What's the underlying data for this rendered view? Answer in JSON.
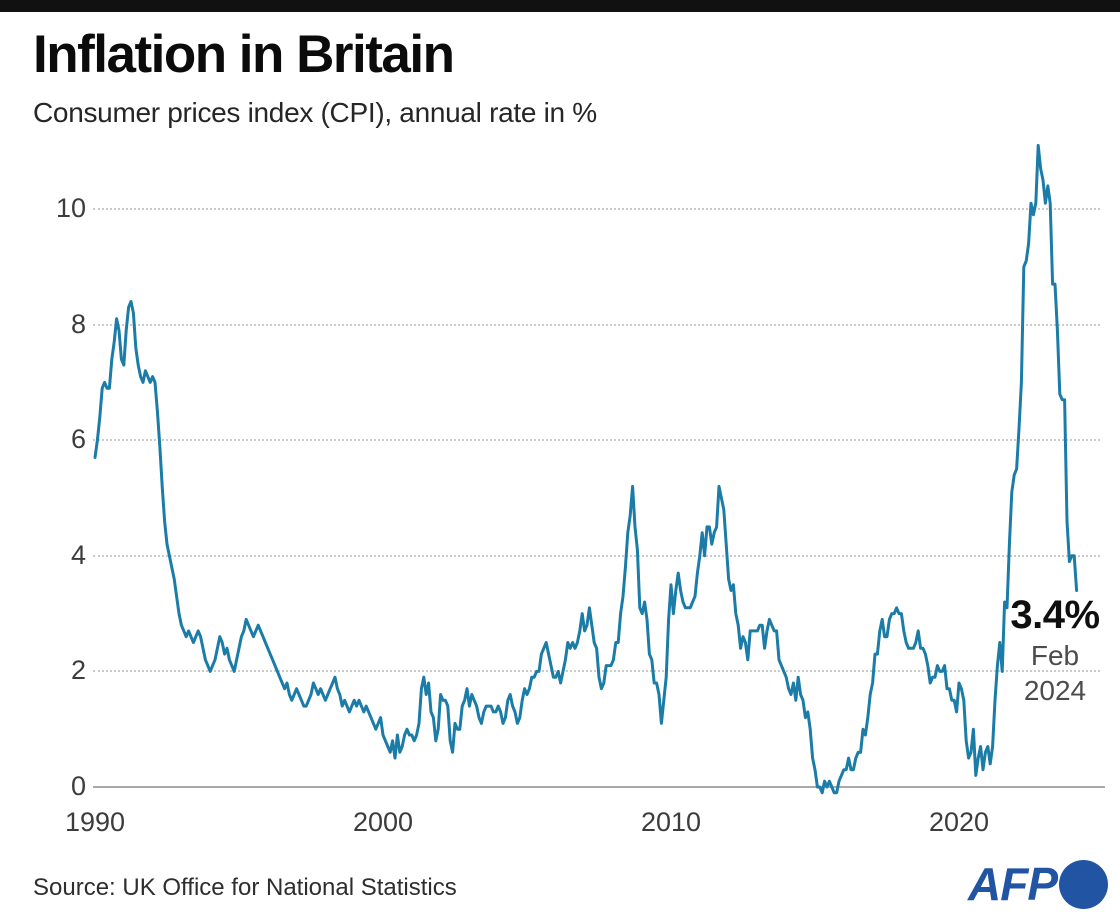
{
  "header": {
    "title": "Inflation in Britain",
    "subtitle": "Consumer prices index (CPI), annual rate in %"
  },
  "annotation": {
    "value": "3.4%",
    "month": "Feb",
    "year": "2024"
  },
  "footer": {
    "source": "Source: UK Office for National Statistics",
    "logo_text": "AFP",
    "logo_icon": "afp-circle-icon"
  },
  "colors": {
    "line": "#1b7ca8",
    "afp_blue": "#2254a4",
    "top_bar": "#111111",
    "grid": "#cbcbcb",
    "axis": "#a9a9a9"
  },
  "chart_data": {
    "type": "line",
    "title": "Inflation in Britain",
    "subtitle": "Consumer prices index (CPI), annual rate in %",
    "series_name": "UK CPI annual rate",
    "unit": "%",
    "frequency": "monthly",
    "x_start": 1990.0,
    "x_end_label": "Feb 2024",
    "latest": {
      "label": "Feb 2024",
      "value": 3.4
    },
    "xlim": [
      1989.7,
      2024.6
    ],
    "ylim": [
      -0.3,
      11.3
    ],
    "yticks": [
      0,
      2,
      4,
      6,
      8,
      10
    ],
    "xticks": [
      1990,
      2000,
      2010,
      2020
    ],
    "ytick_labels": [
      "10",
      "8",
      "6",
      "4",
      "2",
      "0"
    ],
    "xtick_labels": [
      "1990",
      "2000",
      "2010",
      "2020"
    ],
    "grid": "dotted horizontal gridlines, solid zero baseline",
    "legend": "none",
    "values": [
      5.7,
      6.0,
      6.4,
      6.9,
      7.0,
      6.9,
      6.9,
      7.4,
      7.7,
      8.1,
      7.9,
      7.4,
      7.3,
      7.9,
      8.3,
      8.4,
      8.2,
      7.6,
      7.3,
      7.1,
      7.0,
      7.2,
      7.1,
      7.0,
      7.1,
      7.0,
      6.5,
      5.9,
      5.2,
      4.6,
      4.2,
      4.0,
      3.8,
      3.6,
      3.3,
      3.0,
      2.8,
      2.7,
      2.6,
      2.7,
      2.6,
      2.5,
      2.6,
      2.7,
      2.6,
      2.4,
      2.2,
      2.1,
      2.0,
      2.1,
      2.2,
      2.4,
      2.6,
      2.5,
      2.3,
      2.4,
      2.2,
      2.1,
      2.0,
      2.2,
      2.4,
      2.6,
      2.7,
      2.9,
      2.8,
      2.7,
      2.6,
      2.7,
      2.8,
      2.7,
      2.6,
      2.5,
      2.4,
      2.3,
      2.2,
      2.1,
      2.0,
      1.9,
      1.8,
      1.7,
      1.8,
      1.6,
      1.5,
      1.6,
      1.7,
      1.6,
      1.5,
      1.4,
      1.4,
      1.5,
      1.6,
      1.8,
      1.7,
      1.6,
      1.7,
      1.6,
      1.5,
      1.6,
      1.7,
      1.8,
      1.9,
      1.7,
      1.6,
      1.4,
      1.5,
      1.4,
      1.3,
      1.4,
      1.5,
      1.4,
      1.5,
      1.4,
      1.3,
      1.4,
      1.3,
      1.2,
      1.1,
      1.0,
      1.1,
      1.2,
      0.9,
      0.8,
      0.7,
      0.6,
      0.8,
      0.5,
      0.9,
      0.6,
      0.7,
      0.9,
      1.0,
      0.9,
      0.9,
      0.8,
      0.9,
      1.1,
      1.7,
      1.9,
      1.6,
      1.8,
      1.3,
      1.2,
      0.8,
      1.0,
      1.6,
      1.5,
      1.5,
      1.4,
      0.8,
      0.6,
      1.1,
      1.0,
      1.0,
      1.4,
      1.5,
      1.7,
      1.4,
      1.6,
      1.5,
      1.4,
      1.2,
      1.1,
      1.3,
      1.4,
      1.4,
      1.4,
      1.3,
      1.3,
      1.4,
      1.3,
      1.1,
      1.2,
      1.5,
      1.6,
      1.4,
      1.3,
      1.1,
      1.2,
      1.5,
      1.7,
      1.6,
      1.7,
      1.9,
      1.9,
      2.0,
      2.0,
      2.3,
      2.4,
      2.5,
      2.3,
      2.1,
      1.9,
      1.9,
      2.0,
      1.8,
      2.0,
      2.2,
      2.5,
      2.4,
      2.5,
      2.4,
      2.5,
      2.7,
      3.0,
      2.7,
      2.8,
      3.1,
      2.8,
      2.5,
      2.4,
      1.9,
      1.7,
      1.8,
      2.1,
      2.1,
      2.1,
      2.2,
      2.5,
      2.5,
      3.0,
      3.3,
      3.8,
      4.4,
      4.7,
      5.2,
      4.5,
      4.1,
      3.1,
      3.0,
      3.2,
      2.9,
      2.3,
      2.2,
      1.8,
      1.8,
      1.6,
      1.1,
      1.5,
      1.9,
      2.9,
      3.5,
      3.0,
      3.4,
      3.7,
      3.4,
      3.2,
      3.1,
      3.1,
      3.1,
      3.2,
      3.3,
      3.7,
      4.0,
      4.4,
      4.0,
      4.5,
      4.5,
      4.2,
      4.4,
      4.5,
      5.2,
      5.0,
      4.8,
      4.2,
      3.6,
      3.4,
      3.5,
      3.0,
      2.8,
      2.4,
      2.6,
      2.5,
      2.2,
      2.7,
      2.7,
      2.7,
      2.7,
      2.8,
      2.8,
      2.4,
      2.7,
      2.9,
      2.8,
      2.7,
      2.7,
      2.2,
      2.1,
      2.0,
      1.9,
      1.7,
      1.6,
      1.8,
      1.5,
      1.9,
      1.6,
      1.5,
      1.2,
      1.3,
      1.0,
      0.5,
      0.3,
      0.0,
      0.0,
      -0.1,
      0.1,
      0.0,
      0.1,
      0.0,
      -0.1,
      -0.1,
      0.1,
      0.2,
      0.3,
      0.3,
      0.5,
      0.3,
      0.3,
      0.5,
      0.6,
      0.6,
      1.0,
      0.9,
      1.2,
      1.6,
      1.8,
      2.3,
      2.3,
      2.7,
      2.9,
      2.6,
      2.6,
      2.9,
      3.0,
      3.0,
      3.1,
      3.0,
      3.0,
      2.7,
      2.5,
      2.4,
      2.4,
      2.4,
      2.5,
      2.7,
      2.4,
      2.4,
      2.3,
      2.1,
      1.8,
      1.9,
      1.9,
      2.1,
      2.0,
      2.0,
      2.1,
      1.7,
      1.7,
      1.5,
      1.5,
      1.3,
      1.8,
      1.7,
      1.5,
      0.8,
      0.5,
      0.6,
      1.0,
      0.2,
      0.5,
      0.7,
      0.3,
      0.6,
      0.7,
      0.4,
      0.7,
      1.5,
      2.1,
      2.5,
      2.0,
      3.2,
      3.1,
      4.2,
      5.1,
      5.4,
      5.5,
      6.2,
      7.0,
      9.0,
      9.1,
      9.4,
      10.1,
      9.9,
      10.1,
      11.1,
      10.7,
      10.5,
      10.1,
      10.4,
      10.1,
      8.7,
      8.7,
      7.9,
      6.8,
      6.7,
      6.7,
      4.6,
      3.9,
      4.0,
      4.0,
      3.4
    ]
  }
}
